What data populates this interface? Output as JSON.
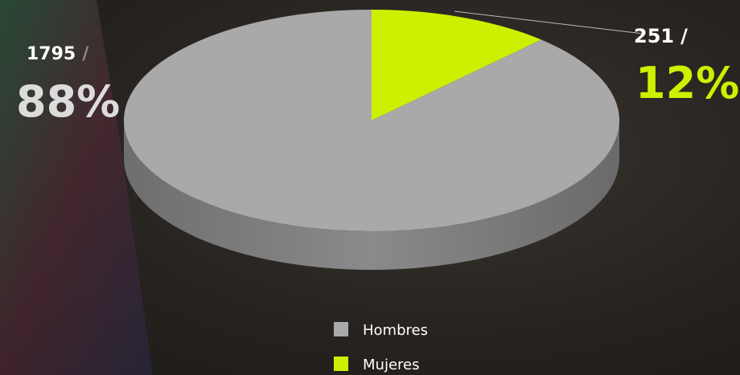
{
  "chart_data": {
    "type": "pie",
    "categories": [
      "Hombres",
      "Mujeres"
    ],
    "values": [
      88,
      12
    ],
    "value_labels": [
      "88%",
      "12%"
    ],
    "counts": [
      1795,
      251
    ],
    "separator": "/",
    "colors": [
      "#a9a9a9",
      "#ccf000"
    ],
    "legend": "bottom"
  }
}
